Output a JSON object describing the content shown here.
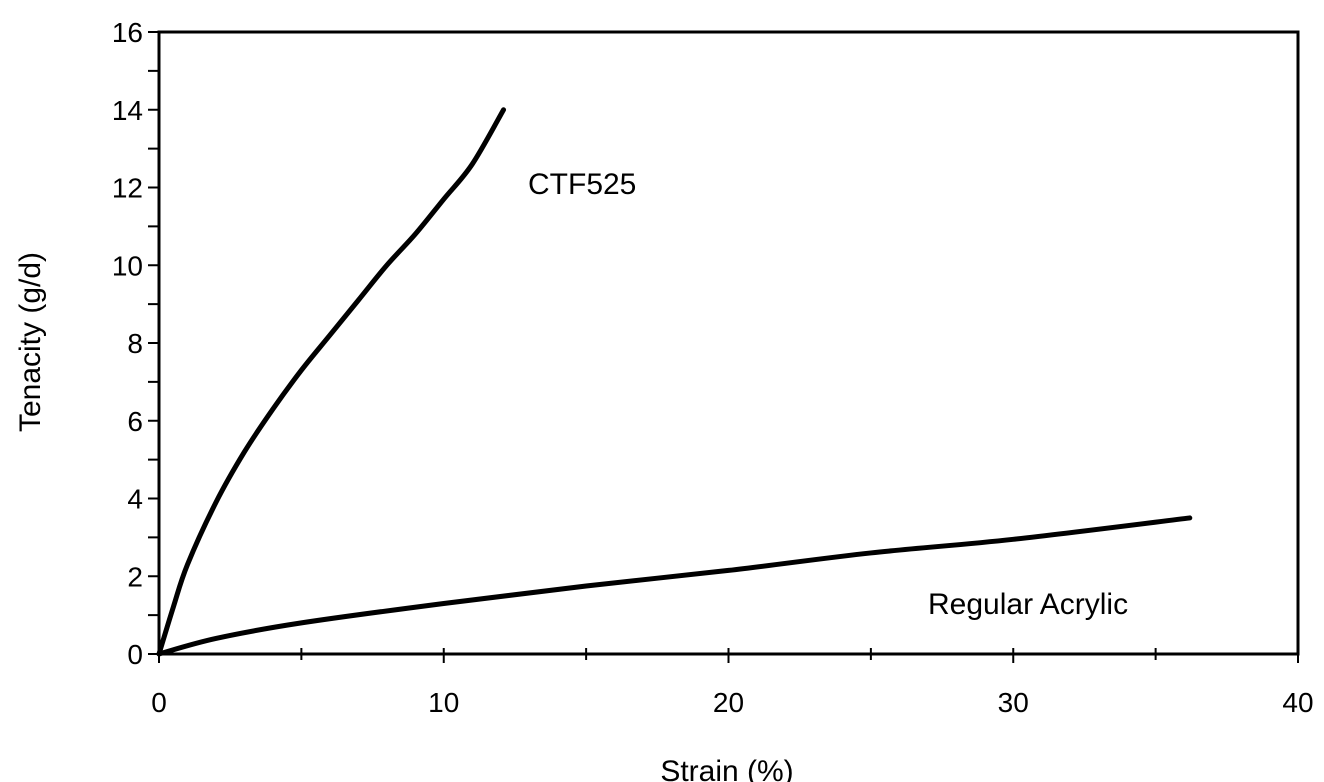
{
  "chart_data": {
    "type": "line",
    "title": "",
    "xlabel": "Strain (%)",
    "ylabel": "Tenacity (g/d)",
    "xlim": [
      0,
      40
    ],
    "ylim": [
      0,
      16
    ],
    "x_ticks": [
      0,
      10,
      20,
      30,
      40
    ],
    "y_ticks": [
      0,
      2,
      4,
      6,
      8,
      10,
      12,
      14,
      16
    ],
    "x_tick_labels": [
      "0",
      "10",
      "20",
      "30",
      "40"
    ],
    "y_tick_labels": [
      "0",
      "2",
      "4",
      "6",
      "8",
      "10",
      "12",
      "14",
      "16"
    ],
    "grid": false,
    "legend": "none",
    "line_color": "#000000",
    "series": [
      {
        "name": "CTF525",
        "x": [
          0,
          0.5,
          1,
          2,
          3,
          4,
          5,
          6,
          7,
          8,
          9,
          10,
          11,
          12.1
        ],
        "y": [
          0,
          1.2,
          2.3,
          3.9,
          5.2,
          6.3,
          7.3,
          8.2,
          9.1,
          10.0,
          10.8,
          11.7,
          12.6,
          14.0
        ]
      },
      {
        "name": "Regular Acrylic",
        "x": [
          0,
          2,
          5,
          10,
          15,
          20,
          25,
          30,
          36.2
        ],
        "y": [
          0,
          0.4,
          0.8,
          1.3,
          1.75,
          2.15,
          2.6,
          2.95,
          3.5
        ]
      }
    ]
  }
}
